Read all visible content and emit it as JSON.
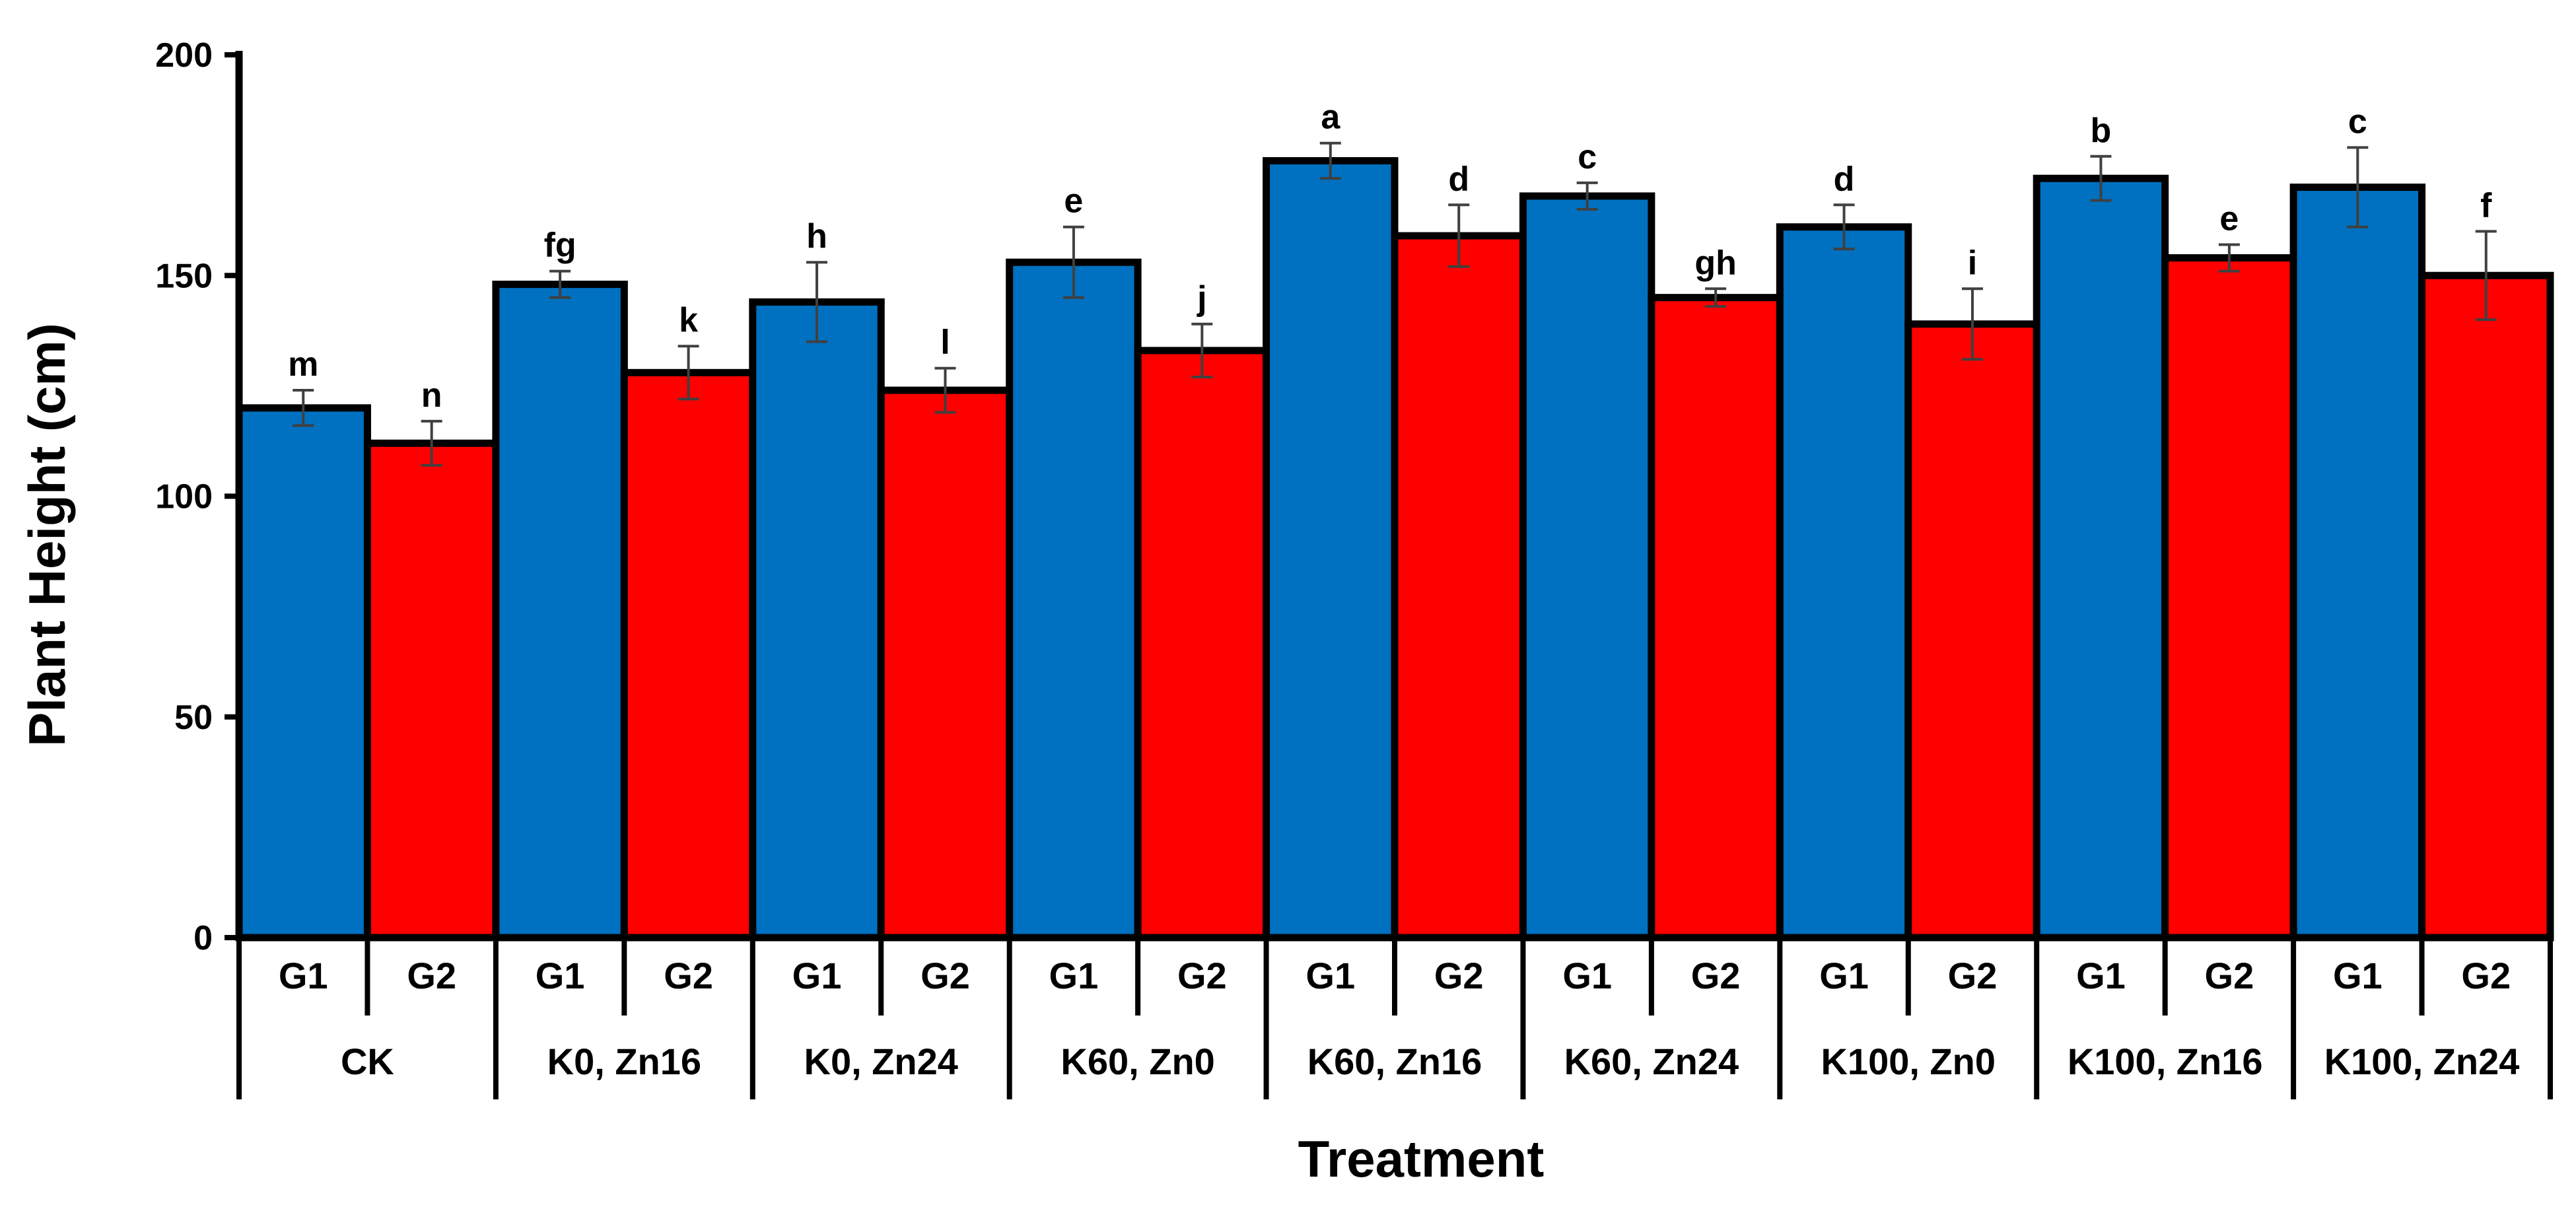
{
  "chart_data": {
    "type": "bar",
    "title": "",
    "xlabel": "Treatment",
    "ylabel": "Plant Height (cm)",
    "ylim": [
      0,
      200
    ],
    "yticks": [
      0,
      50,
      100,
      150,
      200
    ],
    "grid": false,
    "groups": [
      "CK",
      "K0, Zn16",
      "K0, Zn24",
      "K60, Zn0",
      "K60, Zn16",
      "K60, Zn24",
      "K100, Zn0",
      "K100, Zn16",
      "K100, Zn24"
    ],
    "subcategories": [
      "G1",
      "G2"
    ],
    "series": [
      {
        "name": "G1",
        "color": "#0070C0",
        "values": [
          120,
          148,
          144,
          153,
          176,
          168,
          161,
          172,
          170
        ],
        "errors": [
          4,
          3,
          9,
          8,
          4,
          3,
          5,
          5,
          9
        ],
        "significance": [
          "m",
          "fg",
          "h",
          "e",
          "a",
          "c",
          "d",
          "b",
          "c"
        ]
      },
      {
        "name": "G2",
        "color": "#FF0000",
        "values": [
          112,
          128,
          124,
          133,
          159,
          145,
          139,
          154,
          150
        ],
        "errors": [
          5,
          6,
          5,
          6,
          7,
          2,
          8,
          3,
          10
        ],
        "significance": [
          "n",
          "k",
          "l",
          "j",
          "d",
          "gh",
          "i",
          "e",
          "f"
        ]
      }
    ]
  }
}
